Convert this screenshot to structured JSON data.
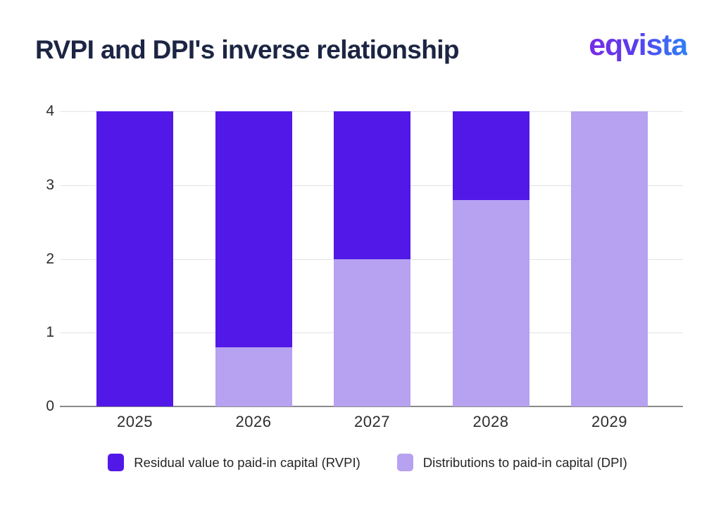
{
  "header": {
    "title": "RVPI and DPI's inverse relationship",
    "logo_text": "eqvista"
  },
  "colors": {
    "rvpi": "#5218e8",
    "dpi": "#b7a1f1",
    "title_text": "#1c2543",
    "axis_label": "#2d2d2d",
    "gridline": "#e3e3e3",
    "axis_line": "#8a8a8a",
    "logo_gradient_start": "#7a2be5",
    "logo_gradient_end": "#2e80f7"
  },
  "chart_data": {
    "type": "bar",
    "stacked": true,
    "title": "RVPI and DPI's inverse relationship",
    "categories": [
      "2025",
      "2026",
      "2027",
      "2028",
      "2029"
    ],
    "series": [
      {
        "name": "Residual value to paid-in capital (RVPI)",
        "color": "#5218e8",
        "values": [
          4,
          3.2,
          2,
          1.2,
          0
        ]
      },
      {
        "name": "Distributions to paid-in capital (DPI)",
        "color": "#b7a1f1",
        "values": [
          0,
          0.8,
          2,
          2.8,
          4
        ]
      }
    ],
    "xlabel": "",
    "ylabel": "",
    "ylim": [
      0,
      4
    ],
    "yticks": [
      0,
      1,
      2,
      3,
      4
    ],
    "grid": "horizontal",
    "legend_position": "bottom"
  }
}
